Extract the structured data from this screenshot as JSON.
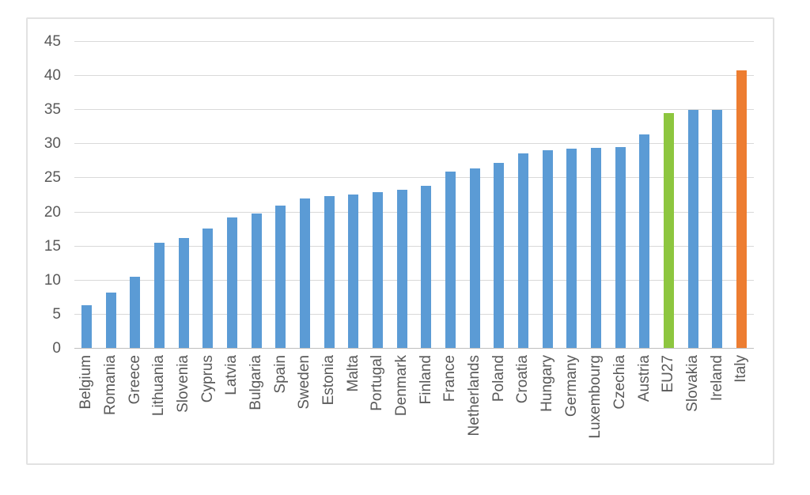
{
  "colors": {
    "bar_default": "#5B9BD5",
    "highlight_eu27": "#8DC63F",
    "highlight_italy": "#ED7D31",
    "gridline": "#D9D9D9",
    "axis_line": "#BFBFBF",
    "text": "#595959",
    "frame_border": "#E2E2E2"
  },
  "chart_data": {
    "type": "bar",
    "title": "",
    "xlabel": "",
    "ylabel": "",
    "legend": false,
    "grid": true,
    "ylim": [
      0,
      45
    ],
    "y_ticks": [
      0,
      5,
      10,
      15,
      20,
      25,
      30,
      35,
      40,
      45
    ],
    "categories": [
      "Belgium",
      "Romania",
      "Greece",
      "Lithuania",
      "Slovenia",
      "Cyprus",
      "Latvia",
      "Bulgaria",
      "Spain",
      "Sweden",
      "Estonia",
      "Malta",
      "Portugal",
      "Denmark",
      "Finland",
      "France",
      "Netherlands",
      "Poland",
      "Croatia",
      "Hungary",
      "Germany",
      "Luxembourg",
      "Czechia",
      "Austria",
      "EU27",
      "Slovakia",
      "Ireland",
      "Italy"
    ],
    "values": [
      6.4,
      8.2,
      10.6,
      15.6,
      16.2,
      17.6,
      19.3,
      19.8,
      21.0,
      22.0,
      22.4,
      22.6,
      23.0,
      23.3,
      23.9,
      26.0,
      26.4,
      27.3,
      28.6,
      29.1,
      29.3,
      29.5,
      29.6,
      31.4,
      34.6,
      35.0,
      35.0,
      40.8
    ],
    "bar_colors_by_category": {
      "EU27": "#8DC63F",
      "Italy": "#ED7D31"
    }
  }
}
